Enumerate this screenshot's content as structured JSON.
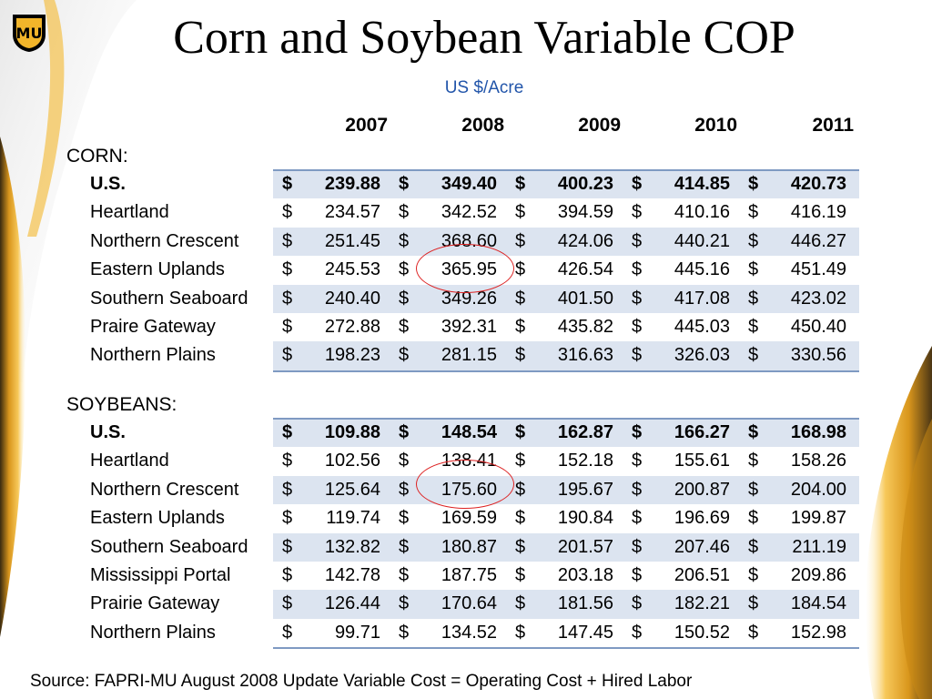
{
  "title": "Corn and Soybean Variable COP",
  "subtitle": "US $/Acre",
  "years": [
    "2007",
    "2008",
    "2009",
    "2010",
    "2011"
  ],
  "currency": "$",
  "corn": {
    "label": "CORN:",
    "rows": [
      {
        "region": "U.S.",
        "values": [
          "239.88",
          "349.40",
          "400.23",
          "414.85",
          "420.73"
        ]
      },
      {
        "region": "Heartland",
        "values": [
          "234.57",
          "342.52",
          "394.59",
          "410.16",
          "416.19"
        ]
      },
      {
        "region": "Northern Crescent",
        "values": [
          "251.45",
          "368.60",
          "424.06",
          "440.21",
          "446.27"
        ]
      },
      {
        "region": "Eastern Uplands",
        "values": [
          "245.53",
          "365.95",
          "426.54",
          "445.16",
          "451.49"
        ]
      },
      {
        "region": "Southern Seaboard",
        "values": [
          "240.40",
          "349.26",
          "401.50",
          "417.08",
          "423.02"
        ]
      },
      {
        "region": "Praire Gateway",
        "values": [
          "272.88",
          "392.31",
          "435.82",
          "445.03",
          "450.40"
        ]
      },
      {
        "region": "Northern Plains",
        "values": [
          "198.23",
          "281.15",
          "316.63",
          "326.03",
          "330.56"
        ]
      }
    ]
  },
  "soybeans": {
    "label": "SOYBEANS:",
    "rows": [
      {
        "region": "U.S.",
        "values": [
          "109.88",
          "148.54",
          "162.87",
          "166.27",
          "168.98"
        ]
      },
      {
        "region": "Heartland",
        "values": [
          "102.56",
          "138.41",
          "152.18",
          "155.61",
          "158.26"
        ]
      },
      {
        "region": "Northern Crescent",
        "values": [
          "125.64",
          "175.60",
          "195.67",
          "200.87",
          "204.00"
        ]
      },
      {
        "region": "Eastern Uplands",
        "values": [
          "119.74",
          "169.59",
          "190.84",
          "196.69",
          "199.87"
        ]
      },
      {
        "region": "Southern Seaboard",
        "values": [
          "132.82",
          "180.87",
          "201.57",
          "207.46",
          "211.19"
        ]
      },
      {
        "region": "Mississippi Portal",
        "values": [
          "142.78",
          "187.75",
          "203.18",
          "206.51",
          "209.86"
        ]
      },
      {
        "region": "Prairie Gateway",
        "values": [
          "126.44",
          "170.64",
          "181.56",
          "182.21",
          "184.54"
        ]
      },
      {
        "region": "Northern Plains",
        "values": [
          "99.71",
          "134.52",
          "147.45",
          "150.52",
          "152.98"
        ]
      }
    ]
  },
  "source": "Source: FAPRI-MU August 2008 Update  Variable Cost = Operating Cost + Hired Labor",
  "colors": {
    "shade": "#dce4f0",
    "rule": "#7f9ac2",
    "subtitle": "#2255aa",
    "circle": "#dd2222",
    "accent_gold": "#f2b52a"
  },
  "logo_text": "MU"
}
